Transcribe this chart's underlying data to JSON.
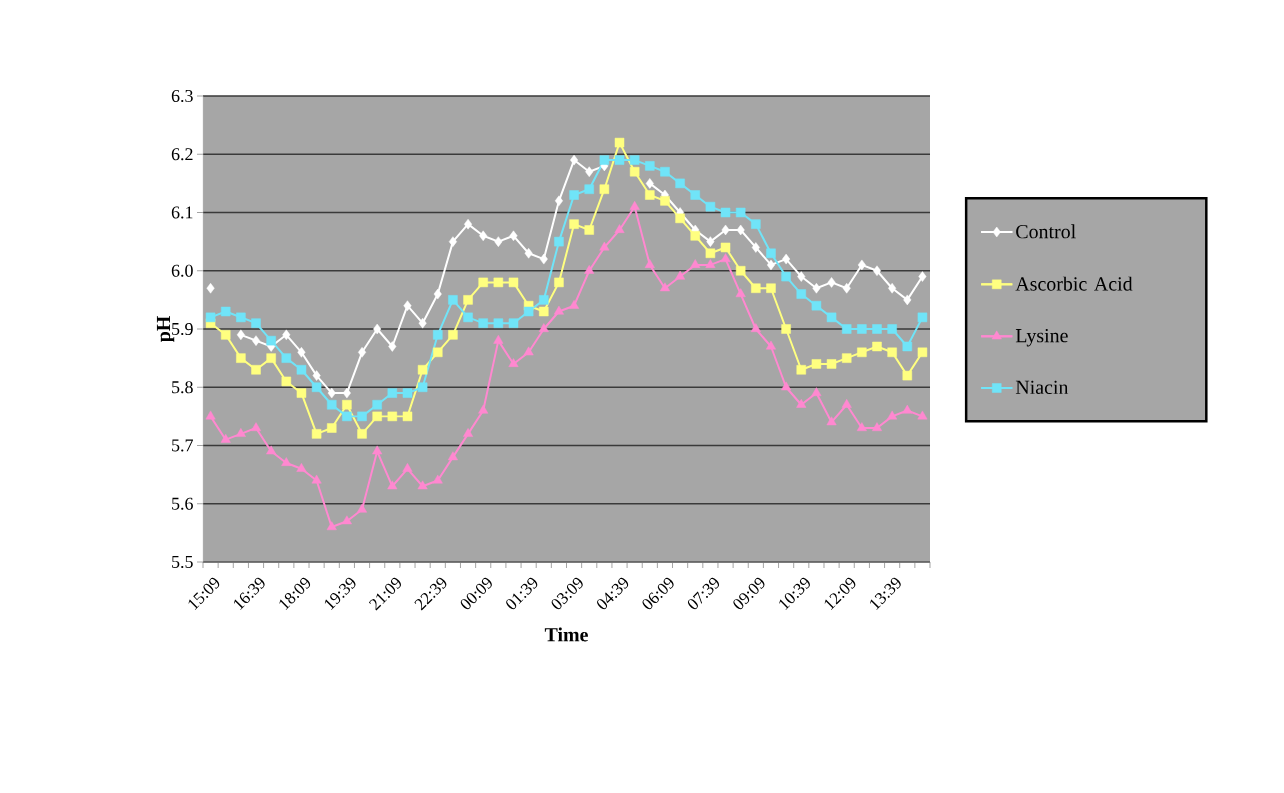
{
  "chart_data": {
    "type": "line",
    "xlabel": "Time",
    "ylabel": "pH",
    "categories": [
      "15:09",
      null,
      null,
      "16:39",
      null,
      null,
      "18:09",
      null,
      null,
      "19:39",
      null,
      null,
      "21:09",
      null,
      null,
      "22:39",
      null,
      null,
      "00:09",
      null,
      null,
      "01:39",
      null,
      null,
      "03:09",
      null,
      null,
      "04:39",
      null,
      null,
      "06:09",
      null,
      null,
      "07:39",
      null,
      null,
      "09:09",
      null,
      null,
      "10:39",
      null,
      null,
      "12:09",
      null,
      null,
      "13:39",
      null,
      null
    ],
    "series": [
      {
        "name": "Control",
        "color": "#ffffff",
        "marker": "diamond",
        "values": [
          5.97,
          null,
          5.89,
          5.88,
          5.87,
          5.89,
          5.86,
          5.82,
          5.79,
          5.79,
          5.86,
          5.9,
          5.87,
          5.94,
          5.91,
          5.96,
          6.05,
          6.08,
          6.06,
          6.05,
          6.06,
          6.03,
          6.02,
          6.12,
          6.19,
          6.17,
          6.18,
          null,
          null,
          6.15,
          6.13,
          6.1,
          6.07,
          6.05,
          6.07,
          6.07,
          6.04,
          6.01,
          6.02,
          5.99,
          5.97,
          5.98,
          5.97,
          6.01,
          6.0,
          5.97,
          5.95,
          5.99
        ]
      },
      {
        "name": "Ascorbic Acid",
        "color": "#ffff80",
        "marker": "square",
        "values": [
          5.91,
          5.89,
          5.85,
          5.83,
          5.85,
          5.81,
          5.79,
          5.72,
          5.73,
          5.77,
          5.72,
          5.75,
          5.75,
          5.75,
          5.83,
          5.86,
          5.89,
          5.95,
          5.98,
          5.98,
          5.98,
          5.94,
          5.93,
          5.98,
          6.08,
          6.07,
          6.14,
          6.22,
          6.17,
          6.13,
          6.12,
          6.09,
          6.06,
          6.03,
          6.04,
          6.0,
          5.97,
          5.97,
          5.9,
          5.83,
          5.84,
          5.84,
          5.85,
          5.86,
          5.87,
          5.86,
          5.82,
          5.86
        ]
      },
      {
        "name": "Lysine",
        "color": "#ff88d0",
        "marker": "triangle",
        "values": [
          5.75,
          5.71,
          5.72,
          5.73,
          5.69,
          5.67,
          5.66,
          5.64,
          5.56,
          5.57,
          5.59,
          5.69,
          5.63,
          5.66,
          5.63,
          5.64,
          5.68,
          5.72,
          5.76,
          5.88,
          5.84,
          5.86,
          5.9,
          5.93,
          5.94,
          6.0,
          6.04,
          6.07,
          6.11,
          6.01,
          5.97,
          5.99,
          6.01,
          6.01,
          6.02,
          5.96,
          5.9,
          5.87,
          5.8,
          5.77,
          5.79,
          5.74,
          5.77,
          5.73,
          5.73,
          5.75,
          5.76,
          5.75
        ]
      },
      {
        "name": "Niacin",
        "color": "#70e4f8",
        "marker": "square",
        "values": [
          5.92,
          5.93,
          5.92,
          5.91,
          5.88,
          5.85,
          5.83,
          5.8,
          5.77,
          5.75,
          5.75,
          5.77,
          5.79,
          5.79,
          5.8,
          5.89,
          5.95,
          5.92,
          5.91,
          5.91,
          5.91,
          5.93,
          5.95,
          6.05,
          6.13,
          6.14,
          6.19,
          6.19,
          6.19,
          6.18,
          6.17,
          6.15,
          6.13,
          6.11,
          6.1,
          6.1,
          6.08,
          6.03,
          5.99,
          5.96,
          5.94,
          5.92,
          5.9,
          5.9,
          5.9,
          5.9,
          5.87,
          5.92
        ]
      }
    ],
    "ylim": [
      5.5,
      6.3
    ],
    "yticks": [
      5.5,
      5.6,
      5.7,
      5.8,
      5.9,
      {
        "value": 6,
        "label": "6.0"
      },
      6.1,
      6.2,
      6.3
    ],
    "grid": "y",
    "legend": "right"
  }
}
